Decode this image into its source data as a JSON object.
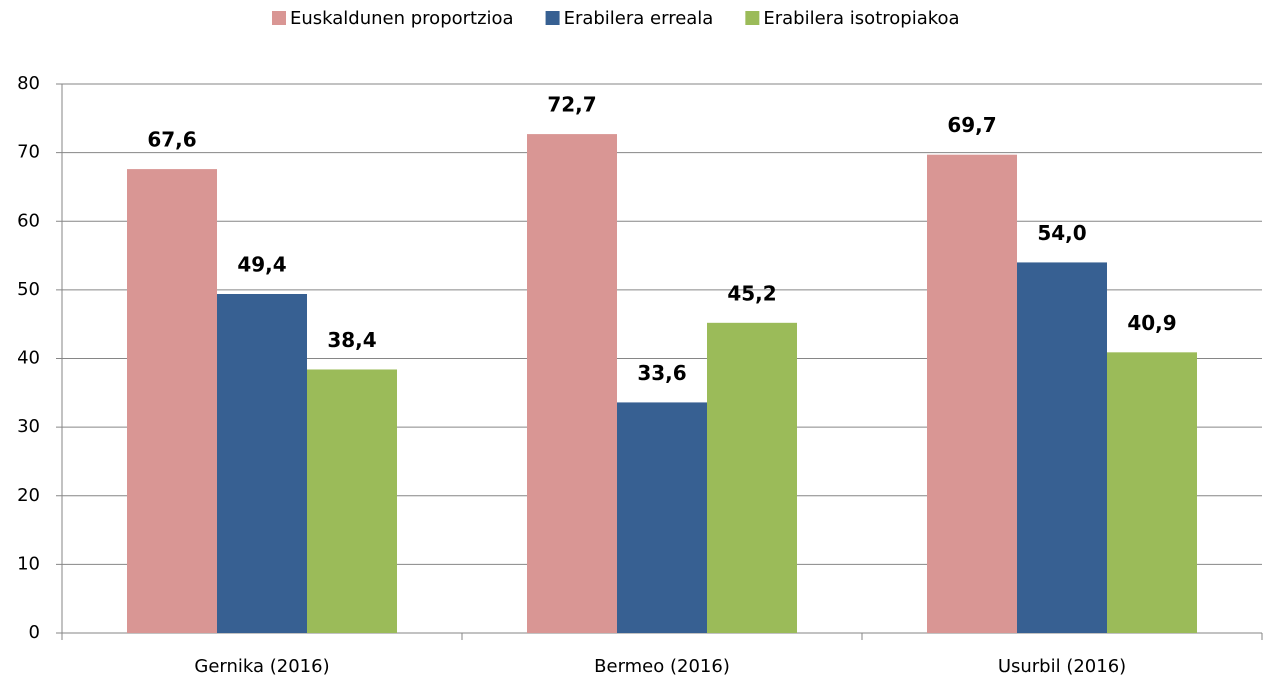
{
  "chart_data": {
    "type": "bar",
    "categories": [
      "Gernika (2016)",
      "Bermeo (2016)",
      "Usurbil (2016)"
    ],
    "series": [
      {
        "name": "Euskaldunen proportzioa",
        "color": "#d99694",
        "label_color": "#953735",
        "values": [
          67.6,
          72.7,
          69.7
        ],
        "value_labels": [
          "67,6",
          "72,7",
          "69,7"
        ]
      },
      {
        "name": "Erabilera erreala",
        "color": "#376092",
        "label_color": "#376092",
        "values": [
          49.4,
          33.6,
          54.0
        ],
        "value_labels": [
          "49,4",
          "33,6",
          "54,0"
        ]
      },
      {
        "name": "Erabilera isotropiakoa",
        "color": "#9bbb59",
        "label_color": "#4f6228",
        "values": [
          38.4,
          45.2,
          40.9
        ],
        "value_labels": [
          "38,4",
          "45,2",
          "40,9"
        ]
      }
    ],
    "ylim": [
      0,
      80
    ],
    "yticks": [
      0,
      10,
      20,
      30,
      40,
      50,
      60,
      70,
      80
    ],
    "grid": true,
    "legend": "top"
  }
}
